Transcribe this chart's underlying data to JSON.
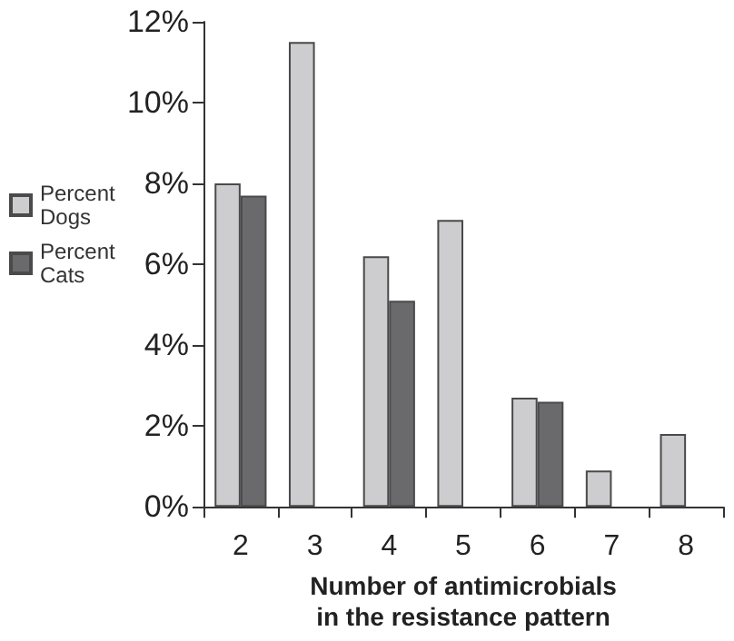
{
  "chart_data": {
    "type": "bar",
    "xlabel": "Number of antimicrobials\nin the resistance pattern",
    "categories": [
      "2",
      "3",
      "4",
      "5",
      "6",
      "7",
      "8"
    ],
    "series": [
      {
        "name": "Percent Dogs",
        "color": "#cdcdcf",
        "values": [
          8.0,
          11.5,
          6.2,
          7.1,
          2.7,
          0.9,
          1.8
        ]
      },
      {
        "name": "Percent Cats",
        "color": "#6a6a6c",
        "values": [
          7.7,
          null,
          5.1,
          null,
          2.6,
          null,
          null
        ]
      }
    ],
    "ylim": [
      0,
      12
    ],
    "yticks": [
      {
        "value": 0,
        "label": "0%"
      },
      {
        "value": 2,
        "label": "2%"
      },
      {
        "value": 4,
        "label": "4%"
      },
      {
        "value": 6,
        "label": "6%"
      },
      {
        "value": 8,
        "label": "8%"
      },
      {
        "value": 10,
        "label": "10%"
      },
      {
        "value": 12,
        "label": "12%"
      }
    ],
    "grid": false,
    "legend": "left"
  }
}
